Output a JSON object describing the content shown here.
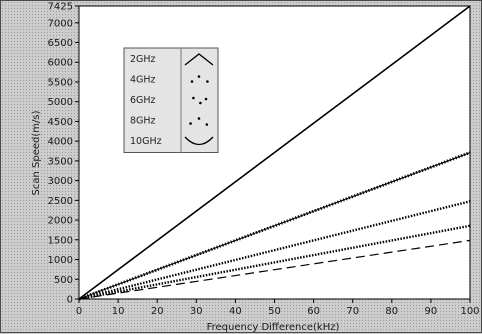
{
  "chart_data": {
    "type": "line",
    "xlabel": "Frequency Difference(kHz)",
    "ylabel": "Scan Speed(m/s)",
    "xlim": [
      0,
      100
    ],
    "ylim": [
      0,
      7425
    ],
    "x_ticks": [
      "0",
      "10",
      "20",
      "30",
      "40",
      "50",
      "60",
      "70",
      "80",
      "90",
      "100"
    ],
    "y_ticks": [
      "0",
      "500",
      "1000",
      "1500",
      "2000",
      "2500",
      "3000",
      "3500",
      "4000",
      "4500",
      "5000",
      "5500",
      "6000",
      "6500",
      "7000",
      "7425"
    ],
    "grid": false,
    "legend_position": "top-left",
    "x": [
      0,
      100
    ],
    "series": [
      {
        "name": "2GHz",
        "values": [
          0,
          7425
        ],
        "style": "solid",
        "color": "#000000"
      },
      {
        "name": "4GHz",
        "values": [
          0,
          3710
        ],
        "style": "cross",
        "color": "#000000"
      },
      {
        "name": "6GHz",
        "values": [
          0,
          2475
        ],
        "style": "dotted",
        "color": "#000000"
      },
      {
        "name": "8GHz",
        "values": [
          0,
          1855
        ],
        "style": "dotted",
        "color": "#000000"
      },
      {
        "name": "10GHz",
        "values": [
          0,
          1485
        ],
        "style": "dashed",
        "color": "#000000"
      }
    ]
  }
}
